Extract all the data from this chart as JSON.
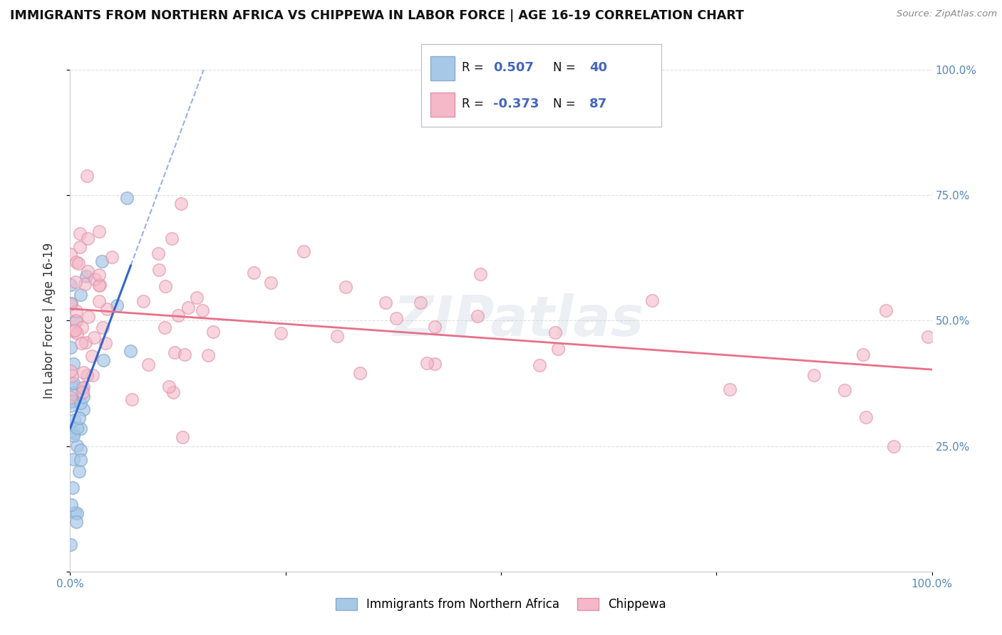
{
  "title": "IMMIGRANTS FROM NORTHERN AFRICA VS CHIPPEWA IN LABOR FORCE | AGE 16-19 CORRELATION CHART",
  "source": "Source: ZipAtlas.com",
  "ylabel": "In Labor Force | Age 16-19",
  "legend_label_blue": "Immigrants from Northern Africa",
  "legend_label_pink": "Chippewa",
  "R_blue": 0.507,
  "N_blue": 40,
  "R_pink": -0.373,
  "N_pink": 87,
  "blue_color": "#a8c8e8",
  "pink_color": "#f4b8c8",
  "blue_line_color": "#3366cc",
  "pink_line_color": "#e8708a",
  "blue_dot_edge": "#88aacc",
  "pink_dot_edge": "#e090a8",
  "watermark": "ZIPatlas",
  "xlim": [
    0.0,
    1.0
  ],
  "ylim": [
    0.0,
    1.0
  ],
  "background_color": "#ffffff",
  "grid_color": "#dddddd",
  "tick_color": "#5588bb",
  "title_color": "#111111",
  "source_color": "#888888",
  "ylabel_color": "#333333",
  "legend_text_color": "#111111",
  "legend_value_color": "#4466bb"
}
